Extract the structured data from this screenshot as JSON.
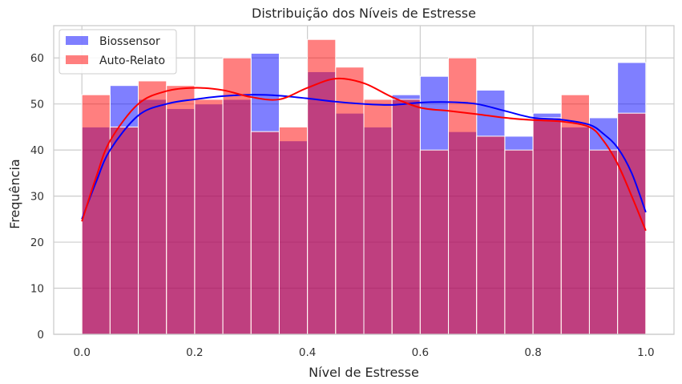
{
  "chart_data": {
    "type": "bar",
    "subtype": "overlaid-histogram-with-kde",
    "title": "Distribuição dos Níveis de Estresse",
    "xlabel": "Nível de Estresse",
    "ylabel": "Frequência",
    "xlim": [
      -0.05,
      1.05
    ],
    "ylim": [
      0,
      67
    ],
    "x_ticks": [
      "0.0",
      "0.2",
      "0.4",
      "0.6",
      "0.8",
      "1.0"
    ],
    "y_ticks": [
      "0",
      "10",
      "20",
      "30",
      "40",
      "50",
      "60"
    ],
    "grid": true,
    "legend_position": "top-left",
    "bin_edges": [
      0.0,
      0.05,
      0.1,
      0.15,
      0.2,
      0.25,
      0.3,
      0.35,
      0.4,
      0.45,
      0.5,
      0.55,
      0.6,
      0.65,
      0.7,
      0.75,
      0.8,
      0.85,
      0.9,
      0.95,
      1.0
    ],
    "series": [
      {
        "name": "Biossensor",
        "color": "#0000ff",
        "values": [
          45,
          54,
          51,
          49,
          50,
          51,
          61,
          42,
          57,
          48,
          45,
          52,
          56,
          44,
          53,
          43,
          48,
          45,
          47,
          59
        ],
        "kde_x": [
          0.0,
          0.025,
          0.05,
          0.1,
          0.15,
          0.2,
          0.25,
          0.3,
          0.35,
          0.4,
          0.45,
          0.5,
          0.55,
          0.6,
          0.65,
          0.7,
          0.75,
          0.8,
          0.85,
          0.9,
          0.925,
          0.95,
          0.975,
          1.0
        ],
        "kde_y": [
          25,
          33,
          40,
          47.5,
          50,
          51,
          51.7,
          52,
          51.8,
          51.2,
          50.5,
          50,
          49.8,
          50.3,
          50.4,
          50,
          48.5,
          47,
          46.6,
          45.5,
          43.5,
          40.5,
          35,
          26.5
        ]
      },
      {
        "name": "Auto-Relato",
        "color": "#ff0000",
        "values": [
          52,
          45,
          55,
          54,
          51,
          60,
          44,
          45,
          64,
          58,
          51,
          51,
          40,
          60,
          43,
          40,
          47,
          52,
          40,
          48
        ],
        "kde_x": [
          0.0,
          0.025,
          0.05,
          0.1,
          0.15,
          0.2,
          0.25,
          0.3,
          0.35,
          0.4,
          0.45,
          0.5,
          0.55,
          0.6,
          0.65,
          0.7,
          0.75,
          0.8,
          0.85,
          0.9,
          0.925,
          0.95,
          0.975,
          1.0
        ],
        "kde_y": [
          24.5,
          34,
          42,
          50,
          52.8,
          53.5,
          53,
          51.5,
          51,
          53.5,
          55.5,
          54.5,
          51.5,
          49.2,
          48.5,
          47.8,
          47,
          46.5,
          46.2,
          45,
          42,
          37,
          30,
          22.5
        ]
      }
    ]
  }
}
